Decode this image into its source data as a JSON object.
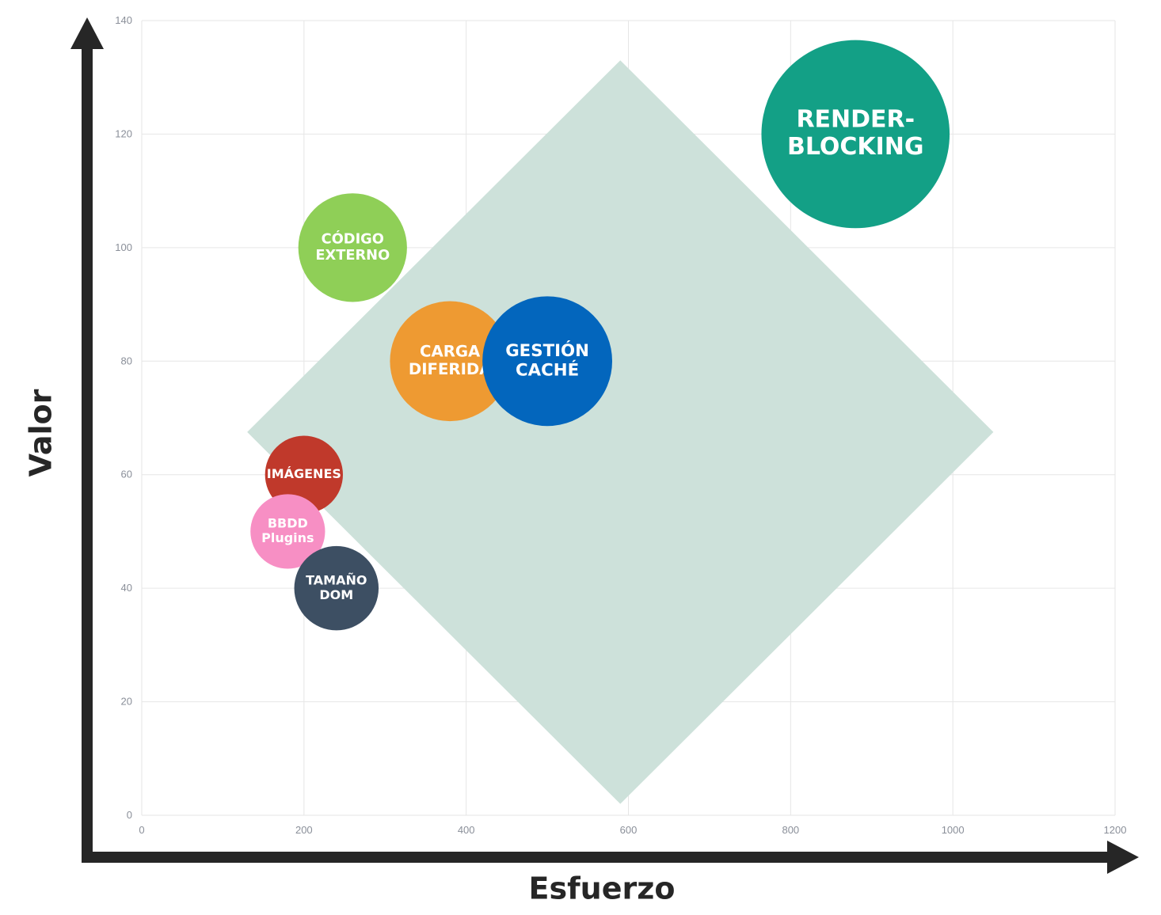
{
  "chart_data": {
    "type": "bubble",
    "title": "",
    "xlabel": "Esfuerzo",
    "ylabel": "Valor",
    "xlim": [
      0,
      1200
    ],
    "ylim": [
      0,
      140
    ],
    "x_ticks": [
      0,
      200,
      400,
      600,
      800,
      1000,
      1200
    ],
    "y_ticks": [
      0,
      20,
      40,
      60,
      80,
      100,
      120,
      140
    ],
    "grid": true,
    "region": {
      "shape": "diamond",
      "color": "#cde1da",
      "points": [
        [
          590,
          133
        ],
        [
          1050,
          67.5
        ],
        [
          590,
          2
        ],
        [
          130,
          67.5
        ]
      ]
    },
    "bubbles": [
      {
        "lines": [
          "RENDER-",
          "BLOCKING"
        ],
        "x": 880,
        "y": 120,
        "size": 116,
        "color": "#13a086"
      },
      {
        "lines": [
          "CÓDIGO",
          "EXTERNO"
        ],
        "x": 260,
        "y": 100,
        "size": 67,
        "color": "#8fcf57"
      },
      {
        "lines": [
          "CARGA",
          "DIFERIDA"
        ],
        "x": 380,
        "y": 80,
        "size": 74,
        "color": "#ee9a32"
      },
      {
        "lines": [
          "GESTIÓN",
          "CACHÉ"
        ],
        "x": 500,
        "y": 80,
        "size": 80,
        "color": "#0366bd"
      },
      {
        "lines": [
          "IMÁGENES"
        ],
        "x": 200,
        "y": 60,
        "size": 48,
        "color": "#c0392b"
      },
      {
        "lines": [
          "BBDD",
          "Plugins"
        ],
        "x": 180,
        "y": 50,
        "size": 46,
        "color": "#f78fc4"
      },
      {
        "lines": [
          "TAMAÑO",
          "DOM"
        ],
        "x": 240,
        "y": 40,
        "size": 52,
        "color": "#3d4f63"
      }
    ]
  }
}
